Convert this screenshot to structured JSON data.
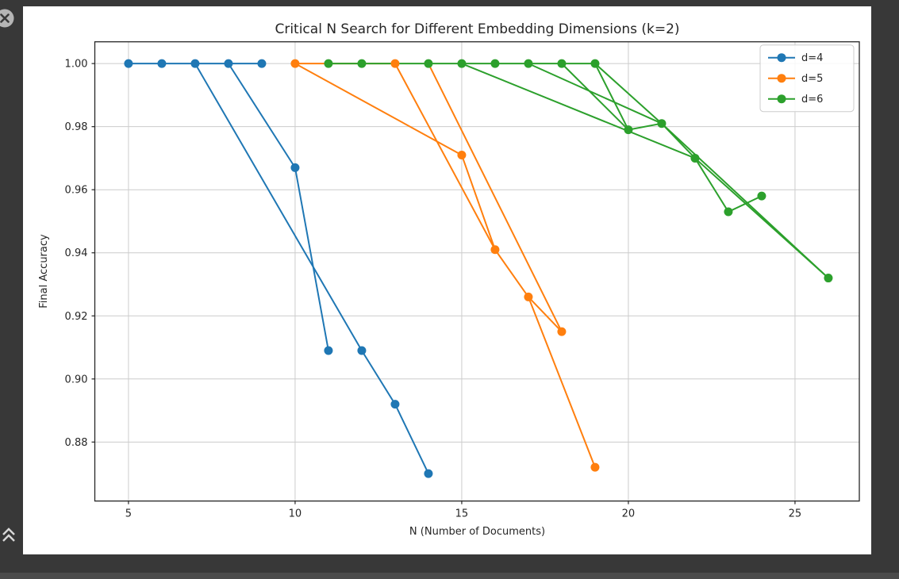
{
  "window": {
    "background_color": "#383838",
    "bottom_bar_color": "#4b4b4b"
  },
  "chart_data": {
    "type": "line",
    "title": "Critical N Search for Different Embedding Dimensions (k=2)",
    "xlabel": "N (Number of Documents)",
    "ylabel": "Final Accuracy",
    "xlim": [
      3.99,
      26.93
    ],
    "ylim": [
      0.8613,
      1.0069
    ],
    "xticks": [
      5,
      10,
      15,
      20,
      25
    ],
    "yticks": [
      0.88,
      0.9,
      0.92,
      0.94,
      0.96,
      0.98,
      1.0
    ],
    "grid": true,
    "grid_color": "#cccccc",
    "spine_color": "#262626",
    "legend_position": "upper right",
    "legend": [
      {
        "label": "d=4",
        "color": "#1f77b4"
      },
      {
        "label": "d=5",
        "color": "#ff7f0e"
      },
      {
        "label": "d=6",
        "color": "#2ca02c"
      }
    ],
    "series": [
      {
        "name": "d=4",
        "color": "#1f77b4",
        "markers": [
          [
            5,
            1.0
          ],
          [
            6,
            1.0
          ],
          [
            7,
            1.0
          ],
          [
            8,
            1.0
          ],
          [
            9,
            1.0
          ],
          [
            10,
            0.967
          ],
          [
            11,
            0.909
          ],
          [
            12,
            0.909
          ],
          [
            13,
            0.892
          ],
          [
            14,
            0.87
          ]
        ],
        "lines": [
          [
            [
              5,
              1.0
            ],
            [
              6,
              1.0
            ],
            [
              7,
              1.0
            ],
            [
              8,
              1.0
            ],
            [
              9,
              1.0
            ]
          ],
          [
            [
              8,
              1.0
            ],
            [
              10,
              0.967
            ],
            [
              11,
              0.909
            ]
          ],
          [
            [
              7,
              1.0
            ],
            [
              12,
              0.909
            ],
            [
              13,
              0.892
            ],
            [
              14,
              0.87
            ]
          ]
        ]
      },
      {
        "name": "d=5",
        "color": "#ff7f0e",
        "markers": [
          [
            10,
            1.0
          ],
          [
            13,
            1.0
          ],
          [
            15,
            0.971
          ],
          [
            16,
            0.941
          ],
          [
            17,
            0.926
          ],
          [
            18,
            0.915
          ],
          [
            19,
            0.872
          ]
        ],
        "lines": [
          [
            [
              10,
              1.0
            ],
            [
              13,
              1.0
            ]
          ],
          [
            [
              10,
              1.0
            ],
            [
              15,
              0.971
            ],
            [
              16,
              0.941
            ],
            [
              17,
              0.926
            ],
            [
              18,
              0.915
            ]
          ],
          [
            [
              13,
              1.0
            ],
            [
              16,
              0.941
            ]
          ],
          [
            [
              14,
              1.0
            ],
            [
              18,
              0.915
            ]
          ],
          [
            [
              17,
              0.926
            ],
            [
              19,
              0.872
            ]
          ]
        ]
      },
      {
        "name": "d=6",
        "color": "#2ca02c",
        "markers": [
          [
            11,
            1.0
          ],
          [
            12,
            1.0
          ],
          [
            14,
            1.0
          ],
          [
            15,
            1.0
          ],
          [
            16,
            1.0
          ],
          [
            17,
            1.0
          ],
          [
            18,
            1.0
          ],
          [
            19,
            1.0
          ],
          [
            20,
            0.979
          ],
          [
            21,
            0.981
          ],
          [
            22,
            0.97
          ],
          [
            23,
            0.953
          ],
          [
            24,
            0.958
          ],
          [
            26,
            0.932
          ]
        ],
        "lines": [
          [
            [
              11,
              1.0
            ],
            [
              19,
              1.0
            ]
          ],
          [
            [
              18,
              1.0
            ],
            [
              20,
              0.979
            ],
            [
              21,
              0.981
            ],
            [
              22,
              0.97
            ],
            [
              23,
              0.953
            ],
            [
              24,
              0.958
            ]
          ],
          [
            [
              19,
              1.0
            ],
            [
              20,
              0.979
            ]
          ],
          [
            [
              19,
              1.0
            ],
            [
              21,
              0.981
            ]
          ],
          [
            [
              17,
              1.0
            ],
            [
              21,
              0.981
            ]
          ],
          [
            [
              15,
              1.0
            ],
            [
              22,
              0.97
            ]
          ],
          [
            [
              21,
              0.981
            ],
            [
              26,
              0.932
            ]
          ],
          [
            [
              22,
              0.97
            ],
            [
              26,
              0.932
            ]
          ]
        ]
      }
    ]
  },
  "icons": {
    "close": "close-icon",
    "expand_up": "double-chevron-up-icon"
  }
}
